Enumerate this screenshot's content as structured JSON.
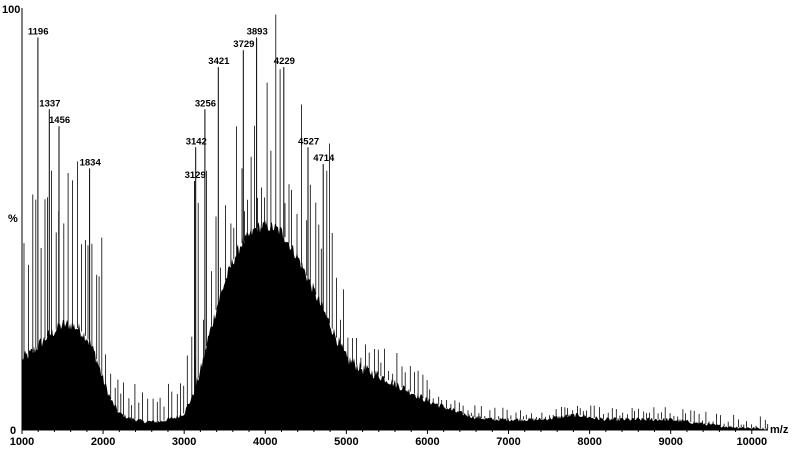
{
  "chart_data": {
    "type": "area",
    "title": "",
    "xlabel": "m/z",
    "ylabel": "%",
    "xlim": [
      1000,
      10200
    ],
    "ylim": [
      0,
      100
    ],
    "x_ticks": [
      1000,
      2000,
      3000,
      4000,
      5000,
      6000,
      7000,
      8000,
      9000,
      10000
    ],
    "y_ticks": [
      0,
      100
    ],
    "y_mid_label": "%",
    "grid": false,
    "series": [
      {
        "values_x": [
          1000,
          1100,
          1200,
          1300,
          1400,
          1500,
          1600,
          1700,
          1800,
          1900,
          2000,
          2100,
          2200,
          2300,
          2400,
          2500,
          2600,
          2700,
          2800,
          2900,
          3000,
          3100,
          3200,
          3300,
          3400,
          3500,
          3600,
          3700,
          3800,
          3900,
          4000,
          4100,
          4200,
          4300,
          4400,
          4500,
          4600,
          4700,
          4800,
          4900,
          5000,
          5200,
          5400,
          5600,
          5800,
          6000,
          6200,
          6400,
          6600,
          6800,
          7000,
          7200,
          7400,
          7600,
          7800,
          7900,
          8000,
          8200,
          8400,
          8600,
          8800,
          9000,
          9200,
          9400,
          9600,
          9800,
          10000,
          10200
        ],
        "values_y": [
          17,
          18,
          20,
          22,
          23.5,
          25,
          25,
          24,
          22,
          18,
          12,
          7,
          4,
          3,
          2.5,
          2,
          2,
          2,
          2.5,
          3,
          4,
          8,
          14,
          22,
          29,
          35,
          40,
          44,
          46,
          48,
          48.5,
          48,
          47,
          44,
          41,
          37,
          33,
          29,
          25,
          21,
          17,
          14.5,
          13,
          11,
          9,
          7,
          5.5,
          4,
          3,
          2.5,
          2.5,
          2.5,
          2.5,
          3,
          3.5,
          3.5,
          3,
          2.5,
          2.5,
          2.5,
          2.5,
          2.5,
          2,
          1.5,
          1,
          0.7,
          0.5,
          0.3
        ]
      }
    ],
    "peaks": [
      {
        "x": 1196,
        "y": 93,
        "label": "1196"
      },
      {
        "x": 1337,
        "y": 76,
        "label": "1337"
      },
      {
        "x": 1456,
        "y": 72,
        "label": "1456"
      },
      {
        "x": 1834,
        "y": 62,
        "label": "1834"
      },
      {
        "x": 3129,
        "y": 59,
        "label": "3129"
      },
      {
        "x": 3142,
        "y": 67,
        "label": "3142"
      },
      {
        "x": 3256,
        "y": 76,
        "label": "3256"
      },
      {
        "x": 3421,
        "y": 86,
        "label": "3421"
      },
      {
        "x": 3729,
        "y": 90,
        "label": "3729"
      },
      {
        "x": 3893,
        "y": 93,
        "label": "3893"
      },
      {
        "x": 4229,
        "y": 86,
        "label": "4229"
      },
      {
        "x": 4527,
        "y": 67,
        "label": "4527"
      },
      {
        "x": 4714,
        "y": 63,
        "label": "4714"
      }
    ]
  }
}
